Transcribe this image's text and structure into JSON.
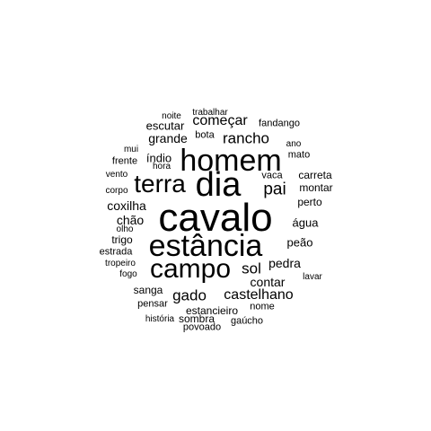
{
  "words": [
    {
      "text": "cavalo"
    },
    {
      "text": "estância"
    },
    {
      "text": "homem"
    },
    {
      "text": "dia"
    },
    {
      "text": "campo"
    },
    {
      "text": "terra"
    },
    {
      "text": "pai"
    },
    {
      "text": "rancho"
    },
    {
      "text": "sol"
    },
    {
      "text": "castelhano"
    },
    {
      "text": "gado"
    },
    {
      "text": "começar"
    },
    {
      "text": "pedra"
    },
    {
      "text": "grande"
    },
    {
      "text": "contar"
    },
    {
      "text": "coxilha"
    },
    {
      "text": "chão"
    },
    {
      "text": "índio"
    },
    {
      "text": "água"
    },
    {
      "text": "peão"
    },
    {
      "text": "carreta"
    },
    {
      "text": "montar"
    },
    {
      "text": "perto"
    },
    {
      "text": "trigo"
    },
    {
      "text": "escutar"
    },
    {
      "text": "sanga"
    },
    {
      "text": "estancieiro"
    },
    {
      "text": "fandango"
    },
    {
      "text": "frente"
    },
    {
      "text": "estrada"
    },
    {
      "text": "vaca"
    },
    {
      "text": "mato"
    },
    {
      "text": "nome"
    },
    {
      "text": "pensar"
    },
    {
      "text": "sombra"
    },
    {
      "text": "bota"
    },
    {
      "text": "hora"
    },
    {
      "text": "olho"
    },
    {
      "text": "ano"
    },
    {
      "text": "mui"
    },
    {
      "text": "vento"
    },
    {
      "text": "corpo"
    },
    {
      "text": "tropeiro"
    },
    {
      "text": "fogo"
    },
    {
      "text": "lavar"
    },
    {
      "text": "povoado"
    },
    {
      "text": "gaúcho"
    },
    {
      "text": "história"
    },
    {
      "text": "noite"
    },
    {
      "text": "trabalhar"
    }
  ]
}
